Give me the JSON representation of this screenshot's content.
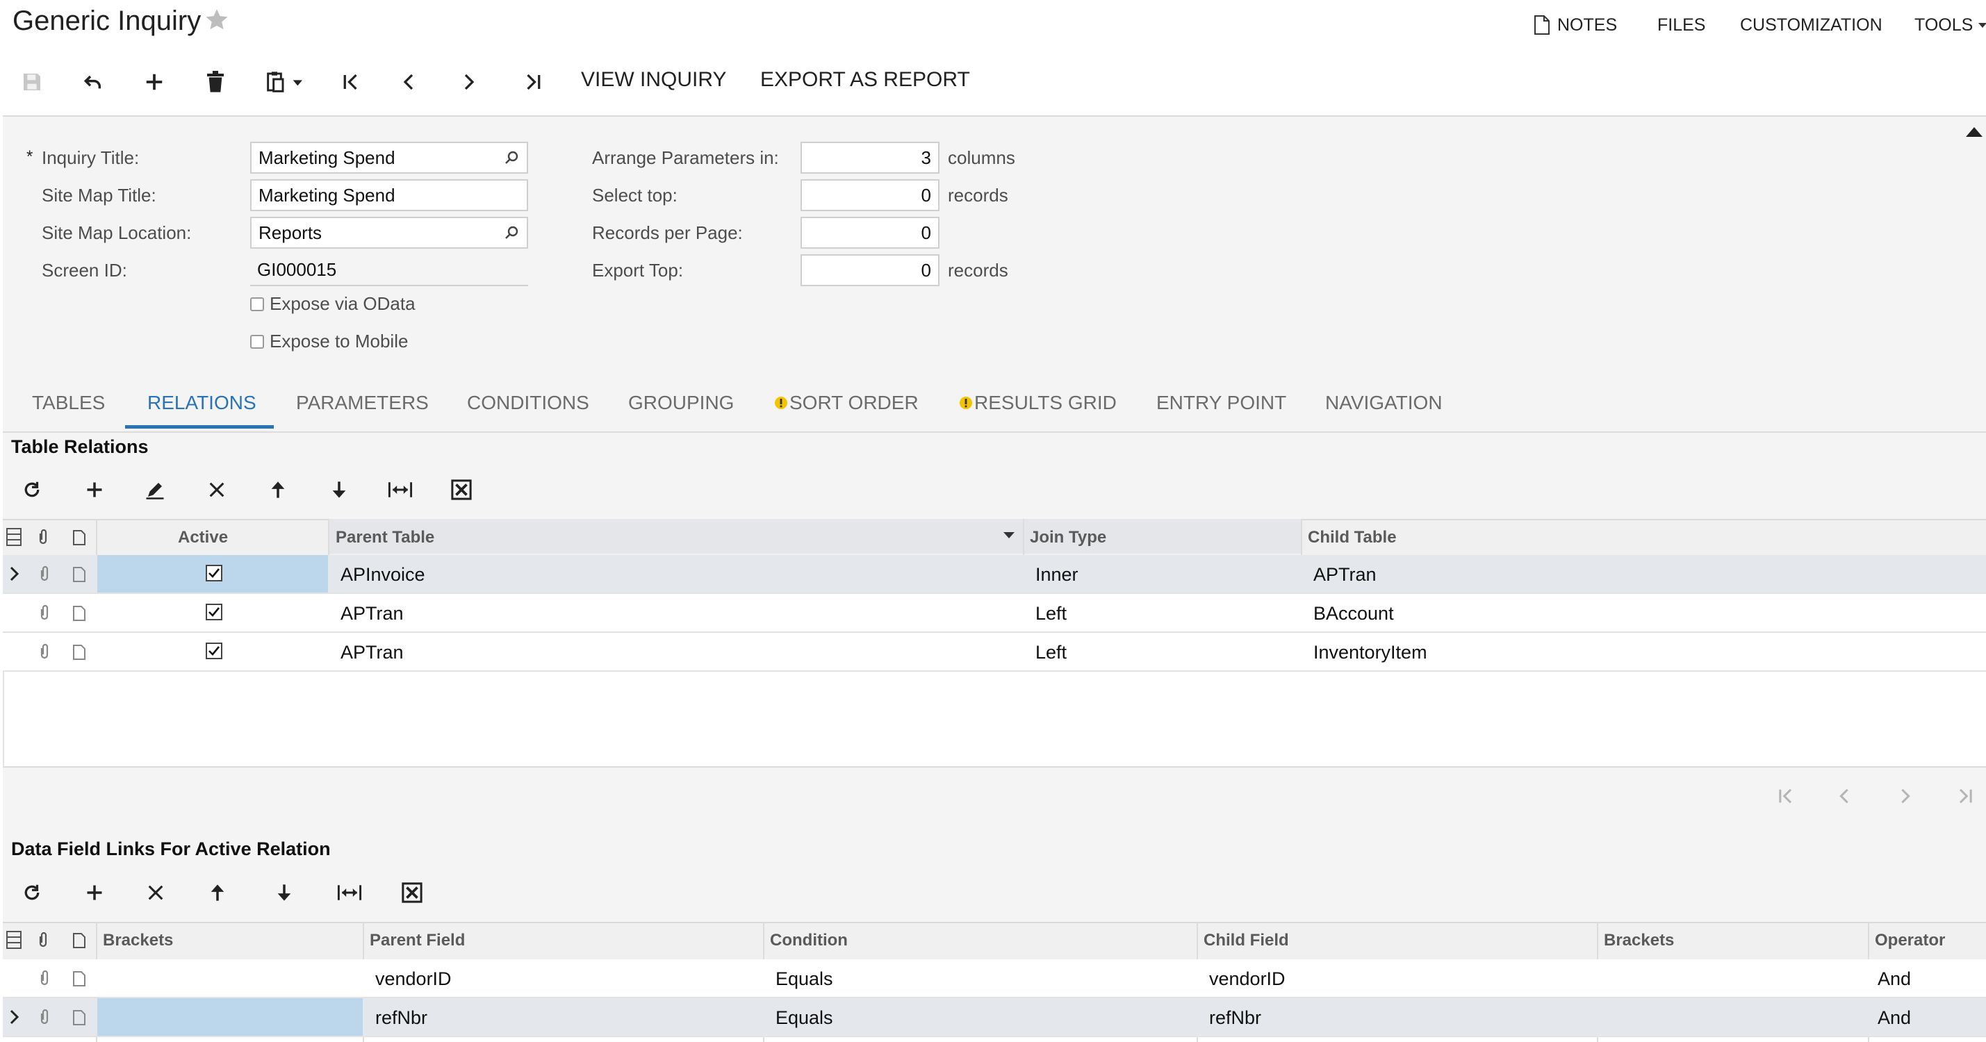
{
  "header": {
    "title": "Generic Inquiry",
    "links": {
      "notes": "NOTES",
      "files": "FILES",
      "customization": "CUSTOMIZATION",
      "tools": "TOOLS"
    }
  },
  "toolbar": {
    "view_inquiry": "VIEW INQUIRY",
    "export_as_report": "EXPORT AS REPORT"
  },
  "form": {
    "required_mark": "*",
    "inquiry_title_label": "Inquiry Title:",
    "inquiry_title_value": "Marketing Spend",
    "site_map_title_label": "Site Map Title:",
    "site_map_title_value": "Marketing Spend",
    "site_map_location_label": "Site Map Location:",
    "site_map_location_value": "Reports",
    "screen_id_label": "Screen ID:",
    "screen_id_value": "GI000015",
    "expose_odata_label": "Expose via OData",
    "expose_mobile_label": "Expose to Mobile",
    "arrange_label": "Arrange Parameters in:",
    "arrange_value": "3",
    "arrange_unit": "columns",
    "select_top_label": "Select top:",
    "select_top_value": "0",
    "select_top_unit": "records",
    "records_per_page_label": "Records per Page:",
    "records_per_page_value": "0",
    "export_top_label": "Export Top:",
    "export_top_value": "0",
    "export_top_unit": "records"
  },
  "tabs": [
    {
      "label": "TABLES"
    },
    {
      "label": "RELATIONS"
    },
    {
      "label": "PARAMETERS"
    },
    {
      "label": "CONDITIONS"
    },
    {
      "label": "GROUPING"
    },
    {
      "label": "SORT ORDER"
    },
    {
      "label": "RESULTS GRID"
    },
    {
      "label": "ENTRY POINT"
    },
    {
      "label": "NAVIGATION"
    }
  ],
  "relations": {
    "title": "Table Relations",
    "columns": {
      "active": "Active",
      "parent_table": "Parent Table",
      "join_type": "Join Type",
      "child_table": "Child Table"
    },
    "rows": [
      {
        "parent": "APInvoice",
        "join": "Inner",
        "child": "APTran"
      },
      {
        "parent": "APTran",
        "join": "Left",
        "child": "BAccount"
      },
      {
        "parent": "APTran",
        "join": "Left",
        "child": "InventoryItem"
      }
    ]
  },
  "links": {
    "title": "Data Field Links For Active Relation",
    "columns": {
      "brackets": "Brackets",
      "parent_field": "Parent Field",
      "condition": "Condition",
      "child_field": "Child Field",
      "brackets2": "Brackets",
      "operator": "Operator"
    },
    "rows": [
      {
        "parent_field": "vendorID",
        "condition": "Equals",
        "child_field": "vendorID",
        "operator": "And"
      },
      {
        "parent_field": "refNbr",
        "condition": "Equals",
        "child_field": "refNbr",
        "operator": "And"
      }
    ]
  },
  "colors": {
    "accent": "#2a73b7",
    "selected_cell": "#bcd6ec",
    "warning": "#f5c400"
  }
}
